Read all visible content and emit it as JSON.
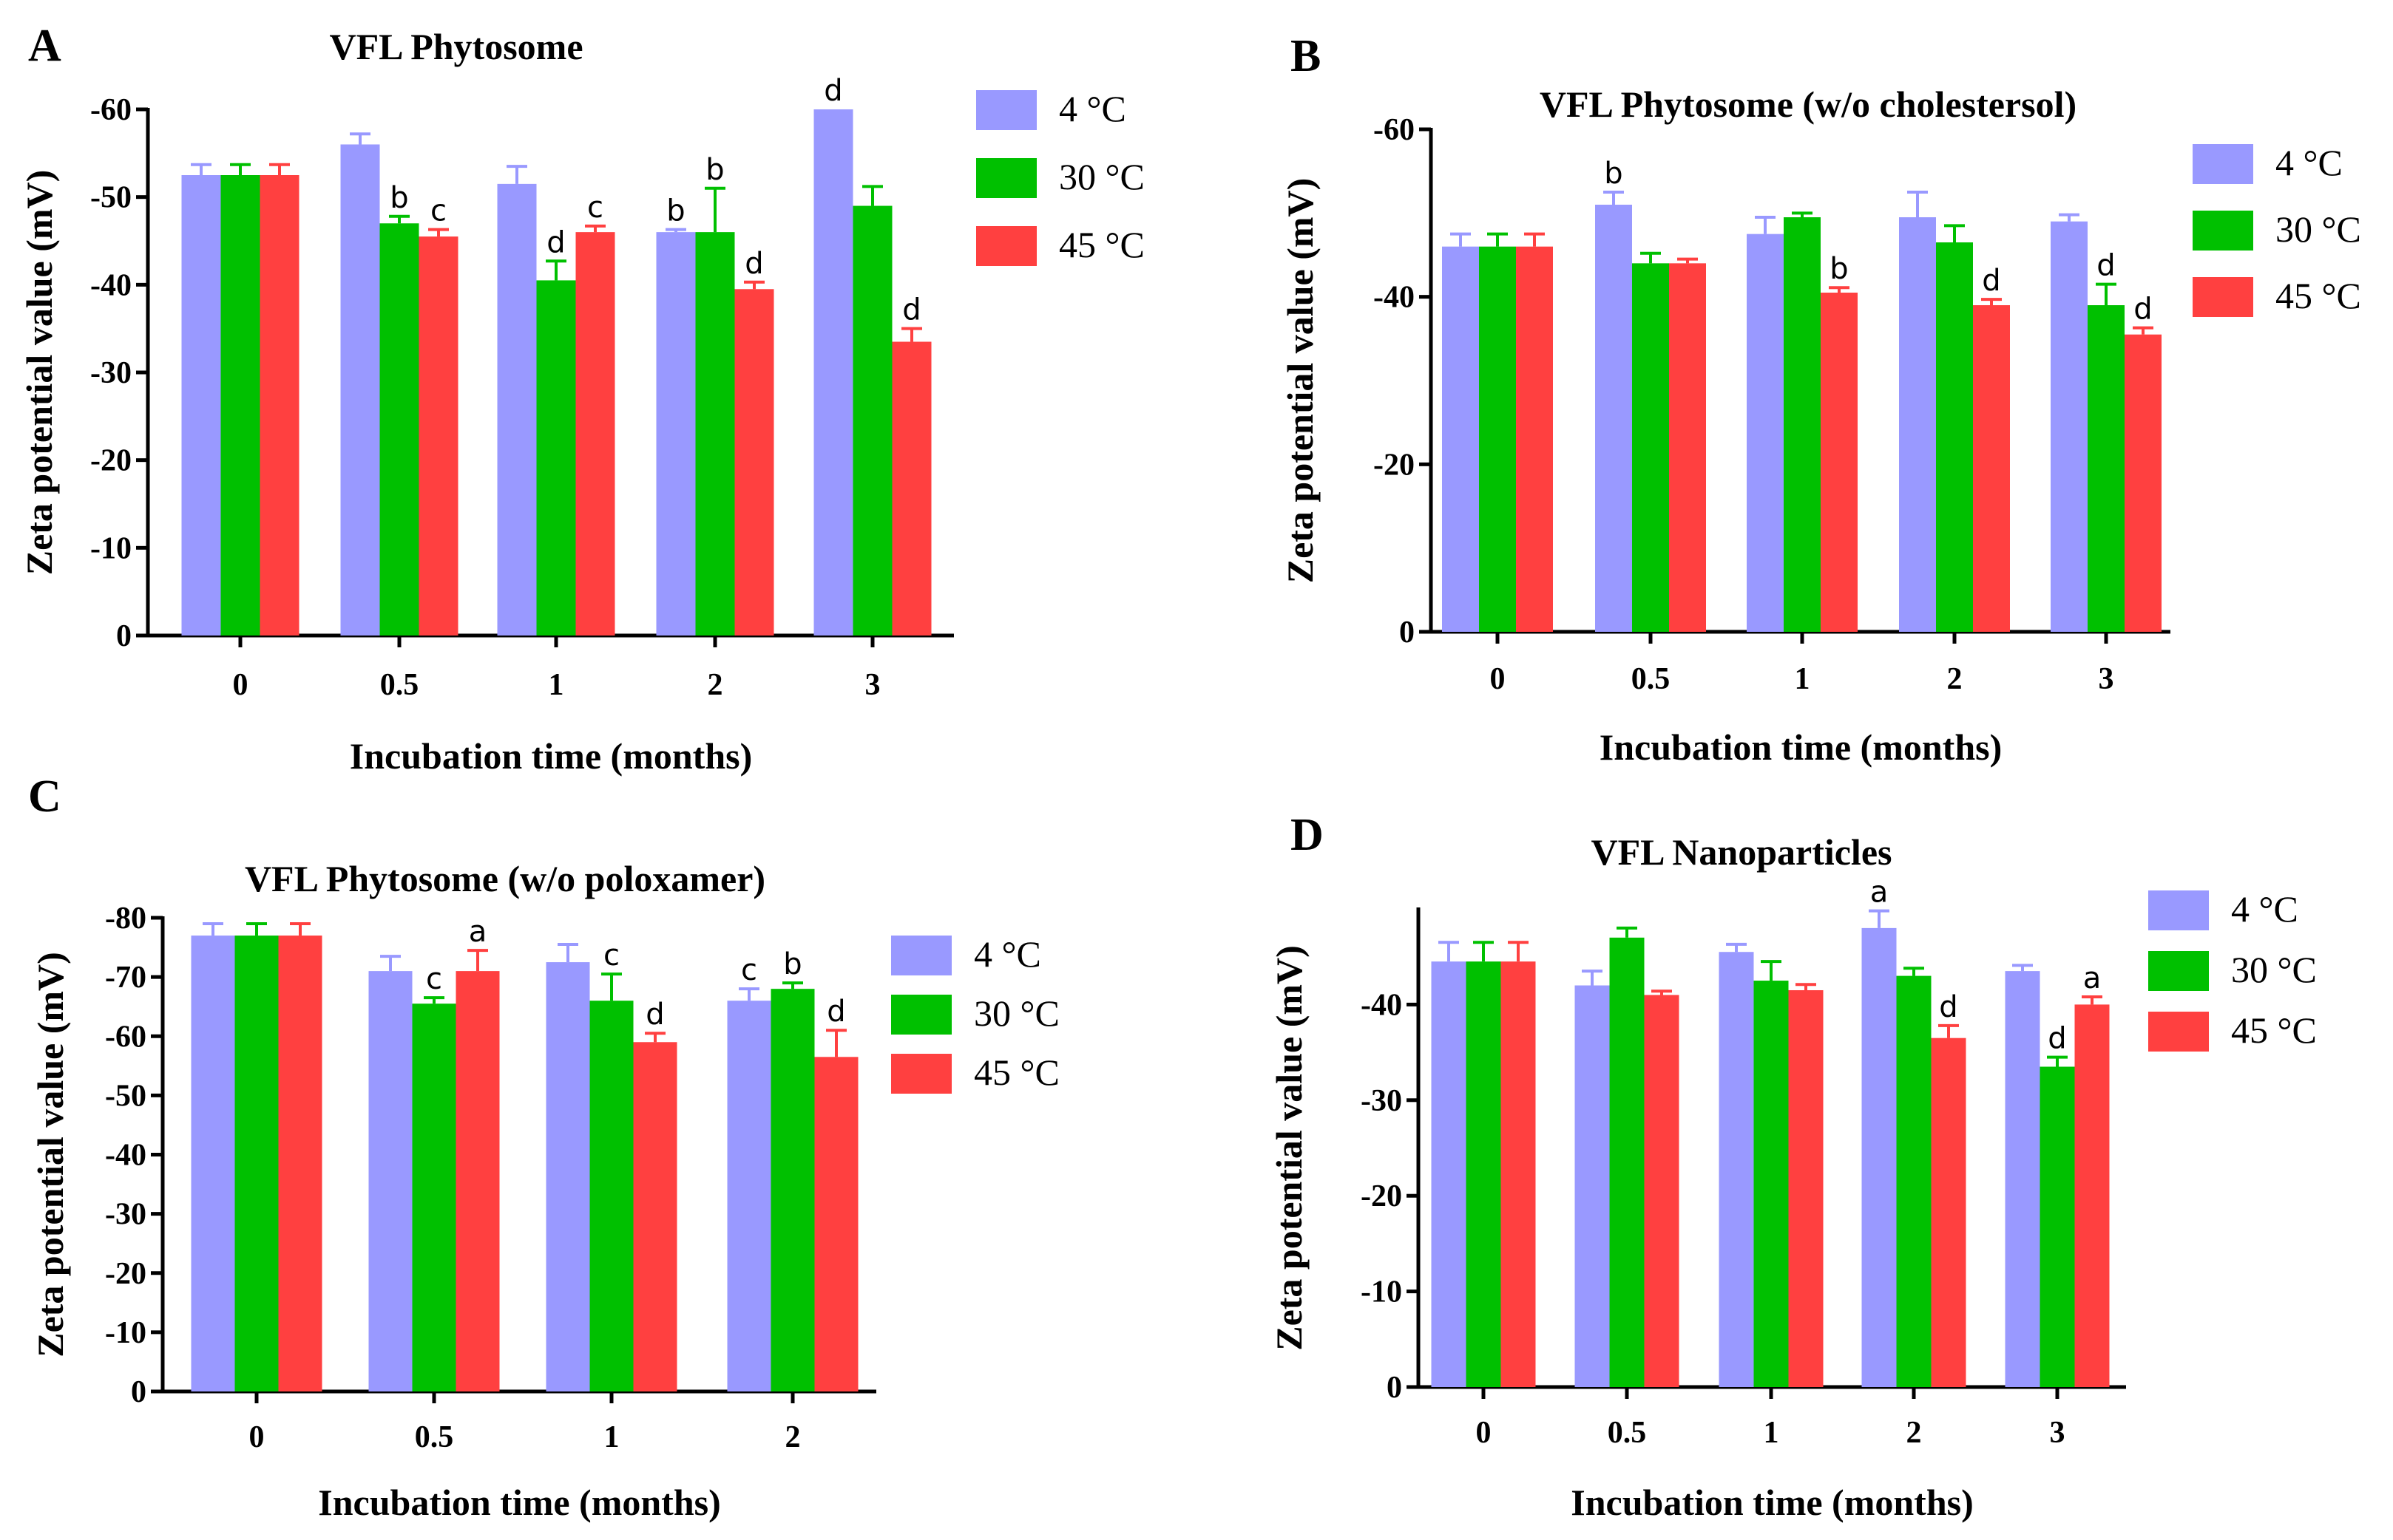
{
  "colors": {
    "4C": "#9999ff",
    "30C": "#00c000",
    "45C": "#ff4040"
  },
  "chart_data": [
    {
      "type": "bar",
      "panel": "A",
      "title": "VFL Phytosome",
      "xlabel": "Incubation time (months)",
      "ylabel": "Zeta potential value (mV)",
      "categories": [
        "0",
        "0.5",
        "1",
        "2",
        "3"
      ],
      "yticks": [
        "0",
        "-10",
        "-20",
        "-30",
        "-40",
        "-50",
        "-60"
      ],
      "ylim": [
        0,
        -60
      ],
      "grid": false,
      "legend_position": "top-right",
      "series": [
        {
          "name": "4 °C",
          "values": [
            -52.5,
            -56,
            -51.5,
            -46,
            -60
          ],
          "errors": [
            1.2,
            1.2,
            2,
            0.3,
            0
          ],
          "labels": [
            "",
            "",
            "",
            "b",
            "d"
          ]
        },
        {
          "name": "30 °C",
          "values": [
            -52.5,
            -47,
            -40.5,
            -46,
            -49
          ],
          "errors": [
            1.2,
            0.8,
            2.2,
            5,
            2.2
          ],
          "labels": [
            "",
            "b",
            "d",
            "b",
            ""
          ]
        },
        {
          "name": "45 °C",
          "values": [
            -52.5,
            -45.5,
            -46,
            -39.5,
            -33.5
          ],
          "errors": [
            1.2,
            0.8,
            0.7,
            0.8,
            1.5
          ],
          "labels": [
            "",
            "c",
            "c",
            "d",
            "d"
          ]
        }
      ]
    },
    {
      "type": "bar",
      "panel": "B",
      "title": "VFL Phytosome (w/o cholestersol)",
      "xlabel": "Incubation time (months)",
      "ylabel": "Zeta potential value (mV)",
      "categories": [
        "0",
        "0.5",
        "1",
        "2",
        "3"
      ],
      "yticks": [
        "0",
        "-20",
        "-40",
        "-60"
      ],
      "ylim": [
        0,
        -60
      ],
      "grid": false,
      "legend_position": "top-right",
      "series": [
        {
          "name": "4 °C",
          "values": [
            -46,
            -51,
            -47.5,
            -49.5,
            -49
          ],
          "errors": [
            1.5,
            1.5,
            2,
            3,
            0.8
          ],
          "labels": [
            "",
            "b",
            "",
            "",
            ""
          ]
        },
        {
          "name": "30 °C",
          "values": [
            -46,
            -44,
            -49.5,
            -46.5,
            -39
          ],
          "errors": [
            1.5,
            1.2,
            0.5,
            2,
            2.5
          ],
          "labels": [
            "",
            "",
            "",
            "",
            "d"
          ]
        },
        {
          "name": "45 °C",
          "values": [
            -46,
            -44,
            -40.5,
            -39,
            -35.5
          ],
          "errors": [
            1.5,
            0.5,
            0.6,
            0.7,
            0.8
          ],
          "labels": [
            "",
            "",
            "b",
            "d",
            "d"
          ]
        }
      ]
    },
    {
      "type": "bar",
      "panel": "C",
      "title": "VFL Phytosome (w/o poloxamer)",
      "xlabel": "Incubation time (months)",
      "ylabel": "Zeta potential value (mV)",
      "categories": [
        "0",
        "0.5",
        "1",
        "2"
      ],
      "yticks": [
        "0",
        "-10",
        "-20",
        "-30",
        "-40",
        "-50",
        "-60",
        "-70",
        "-80"
      ],
      "ylim": [
        0,
        -80
      ],
      "grid": false,
      "legend_position": "top-right",
      "series": [
        {
          "name": "4 °C",
          "values": [
            -77,
            -71,
            -72.5,
            -66
          ],
          "errors": [
            2,
            2.5,
            3,
            2
          ],
          "labels": [
            "",
            "",
            "",
            "c"
          ]
        },
        {
          "name": "30 °C",
          "values": [
            -77,
            -65.5,
            -66,
            -68
          ],
          "errors": [
            2,
            1,
            4.5,
            1
          ],
          "labels": [
            "",
            "c",
            "c",
            "b"
          ]
        },
        {
          "name": "45 °C",
          "values": [
            -77,
            -71,
            -59,
            -56.5
          ],
          "errors": [
            2,
            3.5,
            1.5,
            4.5
          ],
          "labels": [
            "",
            "a",
            "d",
            "d"
          ]
        }
      ]
    },
    {
      "type": "bar",
      "panel": "D",
      "title": "VFL Nanoparticles",
      "xlabel": "Incubation time (months)",
      "ylabel": "Zeta potential value (mV)",
      "categories": [
        "0",
        "0.5",
        "1",
        "2",
        "3"
      ],
      "yticks": [
        "0",
        "-10",
        "-20",
        "-30",
        "-40"
      ],
      "ylim": [
        0,
        -50
      ],
      "grid": false,
      "legend_position": "top-right",
      "series": [
        {
          "name": "4 °C",
          "values": [
            -44.5,
            -42,
            -45.5,
            -48,
            -43.5
          ],
          "errors": [
            2,
            1.5,
            0.8,
            1.8,
            0.6
          ],
          "labels": [
            "",
            "",
            "",
            "a",
            ""
          ]
        },
        {
          "name": "30 °C",
          "values": [
            -44.5,
            -47,
            -42.5,
            -43,
            -33.5
          ],
          "errors": [
            2,
            1,
            2,
            0.8,
            1
          ],
          "labels": [
            "",
            "",
            "",
            "",
            "d"
          ]
        },
        {
          "name": "45 °C",
          "values": [
            -44.5,
            -41,
            -41.5,
            -36.5,
            -40
          ],
          "errors": [
            2,
            0.4,
            0.6,
            1.3,
            0.8
          ],
          "labels": [
            "",
            "",
            "",
            "d",
            "a"
          ]
        }
      ]
    }
  ]
}
